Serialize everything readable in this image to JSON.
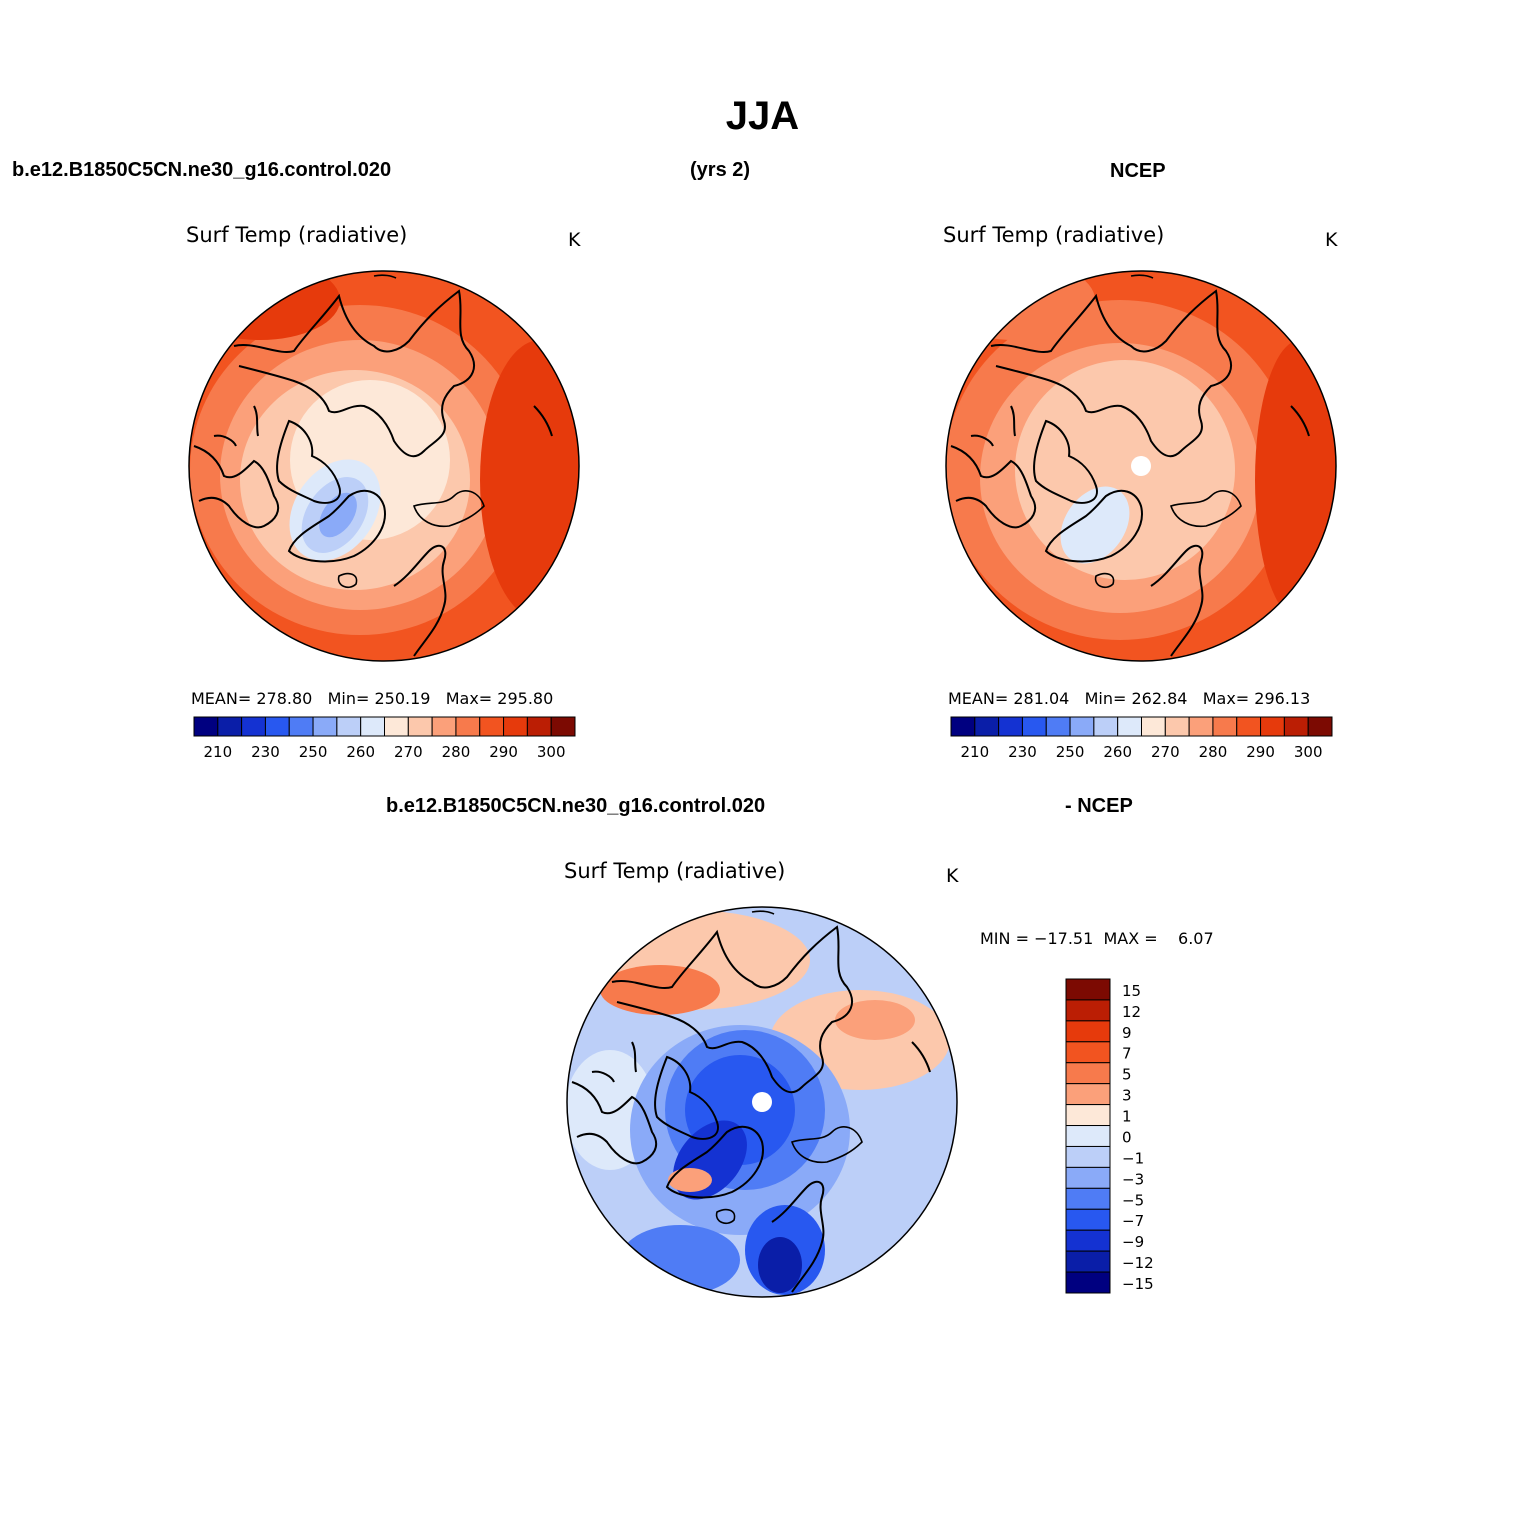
{
  "title": "JJA",
  "header": {
    "case_name": "b.e12.B1850C5CN.ne30_g16.control.020",
    "years": "(yrs 2)",
    "obs_name": "NCEP",
    "diff_case_name": "b.e12.B1850C5CN.ne30_g16.control.020",
    "diff_obs_name": "- NCEP"
  },
  "panels": [
    {
      "variable": "Surf Temp (radiative)",
      "units": "K",
      "stats": {
        "mean_label": "MEAN=",
        "mean": "278.80",
        "min_label": "Min=",
        "min": "250.19",
        "max_label": "Max=",
        "max": "295.80"
      }
    },
    {
      "variable": "Surf Temp (radiative)",
      "units": "K",
      "stats": {
        "mean_label": "MEAN=",
        "mean": "281.04",
        "min_label": "Min=",
        "min": "262.84",
        "max_label": "Max=",
        "max": "296.13"
      }
    },
    {
      "variable": "Surf Temp (radiative)",
      "units": "K",
      "stats": {
        "min_label": "MIN =",
        "min": "−17.51",
        "max_label": "MAX =",
        "max": "6.07"
      }
    }
  ],
  "abs_colorbar": {
    "colors": [
      "#000080",
      "#0a1ea8",
      "#1432d2",
      "#2858f0",
      "#4f7cf5",
      "#8aaaf8",
      "#bccff8",
      "#dde9fa",
      "#fde8d8",
      "#fcc8ac",
      "#fba07a",
      "#f77a4c",
      "#f25420",
      "#e63a0c",
      "#bb1e04",
      "#7c0a02"
    ],
    "labels": [
      "210",
      "230",
      "250",
      "260",
      "270",
      "280",
      "290",
      "300"
    ]
  },
  "diff_colorbar": {
    "colors": [
      "#7c0a02",
      "#bb1e04",
      "#e63a0c",
      "#f25420",
      "#f77a4c",
      "#fba07a",
      "#fde8d8",
      "#dde9fa",
      "#bccff8",
      "#8aaaf8",
      "#4f7cf5",
      "#2858f0",
      "#1432d2",
      "#0a1ea8",
      "#000080"
    ],
    "labels": [
      "15",
      "12",
      "9",
      "7",
      "5",
      "3",
      "1",
      "0",
      "−1",
      "−3",
      "−5",
      "−7",
      "−9",
      "−12",
      "−15"
    ]
  }
}
